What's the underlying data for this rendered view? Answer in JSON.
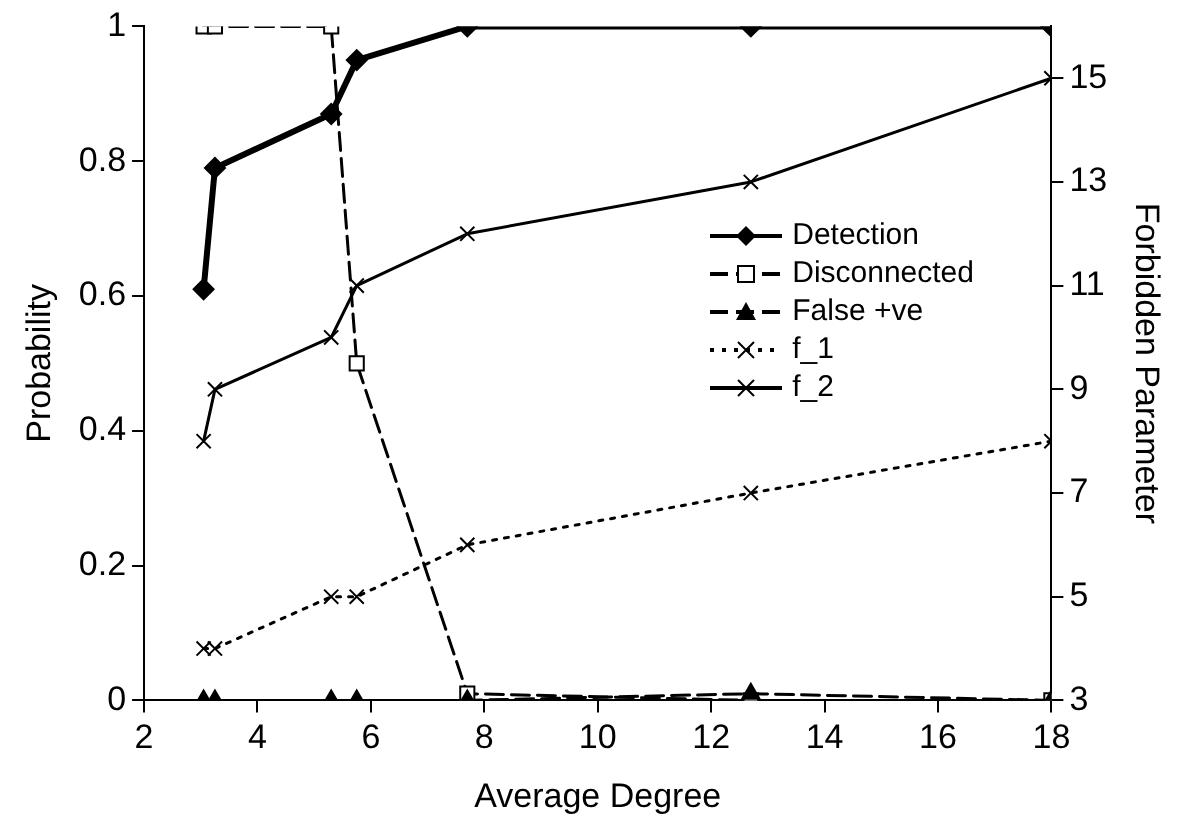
{
  "chart_data": {
    "type": "line",
    "xlabel": "Average Degree",
    "ylabel": "Probability",
    "y2label": "Forbidden Parameter",
    "x": [
      3.05,
      3.25,
      5.3,
      5.75,
      7.7,
      12.7,
      18
    ],
    "series": [
      {
        "name": "Detection",
        "color": "#000000",
        "marker": "diamond",
        "line_style": "solid",
        "values": [
          0.61,
          0.79,
          0.87,
          0.95,
          1,
          1,
          1
        ]
      },
      {
        "name": "Disconnected",
        "color": "#000000",
        "marker": "square",
        "line_style": "dashed",
        "values": [
          1,
          1,
          1,
          0.5,
          0.01,
          0,
          0
        ]
      },
      {
        "name": "False +ve",
        "color": "#000000",
        "marker": "triangle",
        "line_style": "dashed",
        "values": [
          0,
          0,
          0,
          0,
          0,
          0.01,
          0
        ]
      },
      {
        "name": "f_1",
        "color": "#000000",
        "marker": "cross",
        "line_style": "dotted",
        "axis": "y2",
        "values": [
          4,
          4,
          5,
          5,
          6,
          7,
          8
        ]
      },
      {
        "name": "f_2",
        "color": "#000000",
        "marker": "cross",
        "line_style": "solid",
        "axis": "y2",
        "values": [
          8,
          9,
          10,
          11,
          12,
          13,
          15
        ]
      }
    ],
    "xlim": [
      2,
      18
    ],
    "xticks": [
      2,
      4,
      6,
      8,
      10,
      12,
      14,
      16,
      18
    ],
    "ylim": [
      0,
      1
    ],
    "yticks": [
      0,
      0.2,
      0.4,
      0.6,
      0.8,
      1
    ],
    "y2lim": [
      3,
      16
    ],
    "y2ticks": [
      3,
      5,
      7,
      9,
      11,
      13,
      15
    ],
    "grid": false,
    "legend": "center right"
  }
}
